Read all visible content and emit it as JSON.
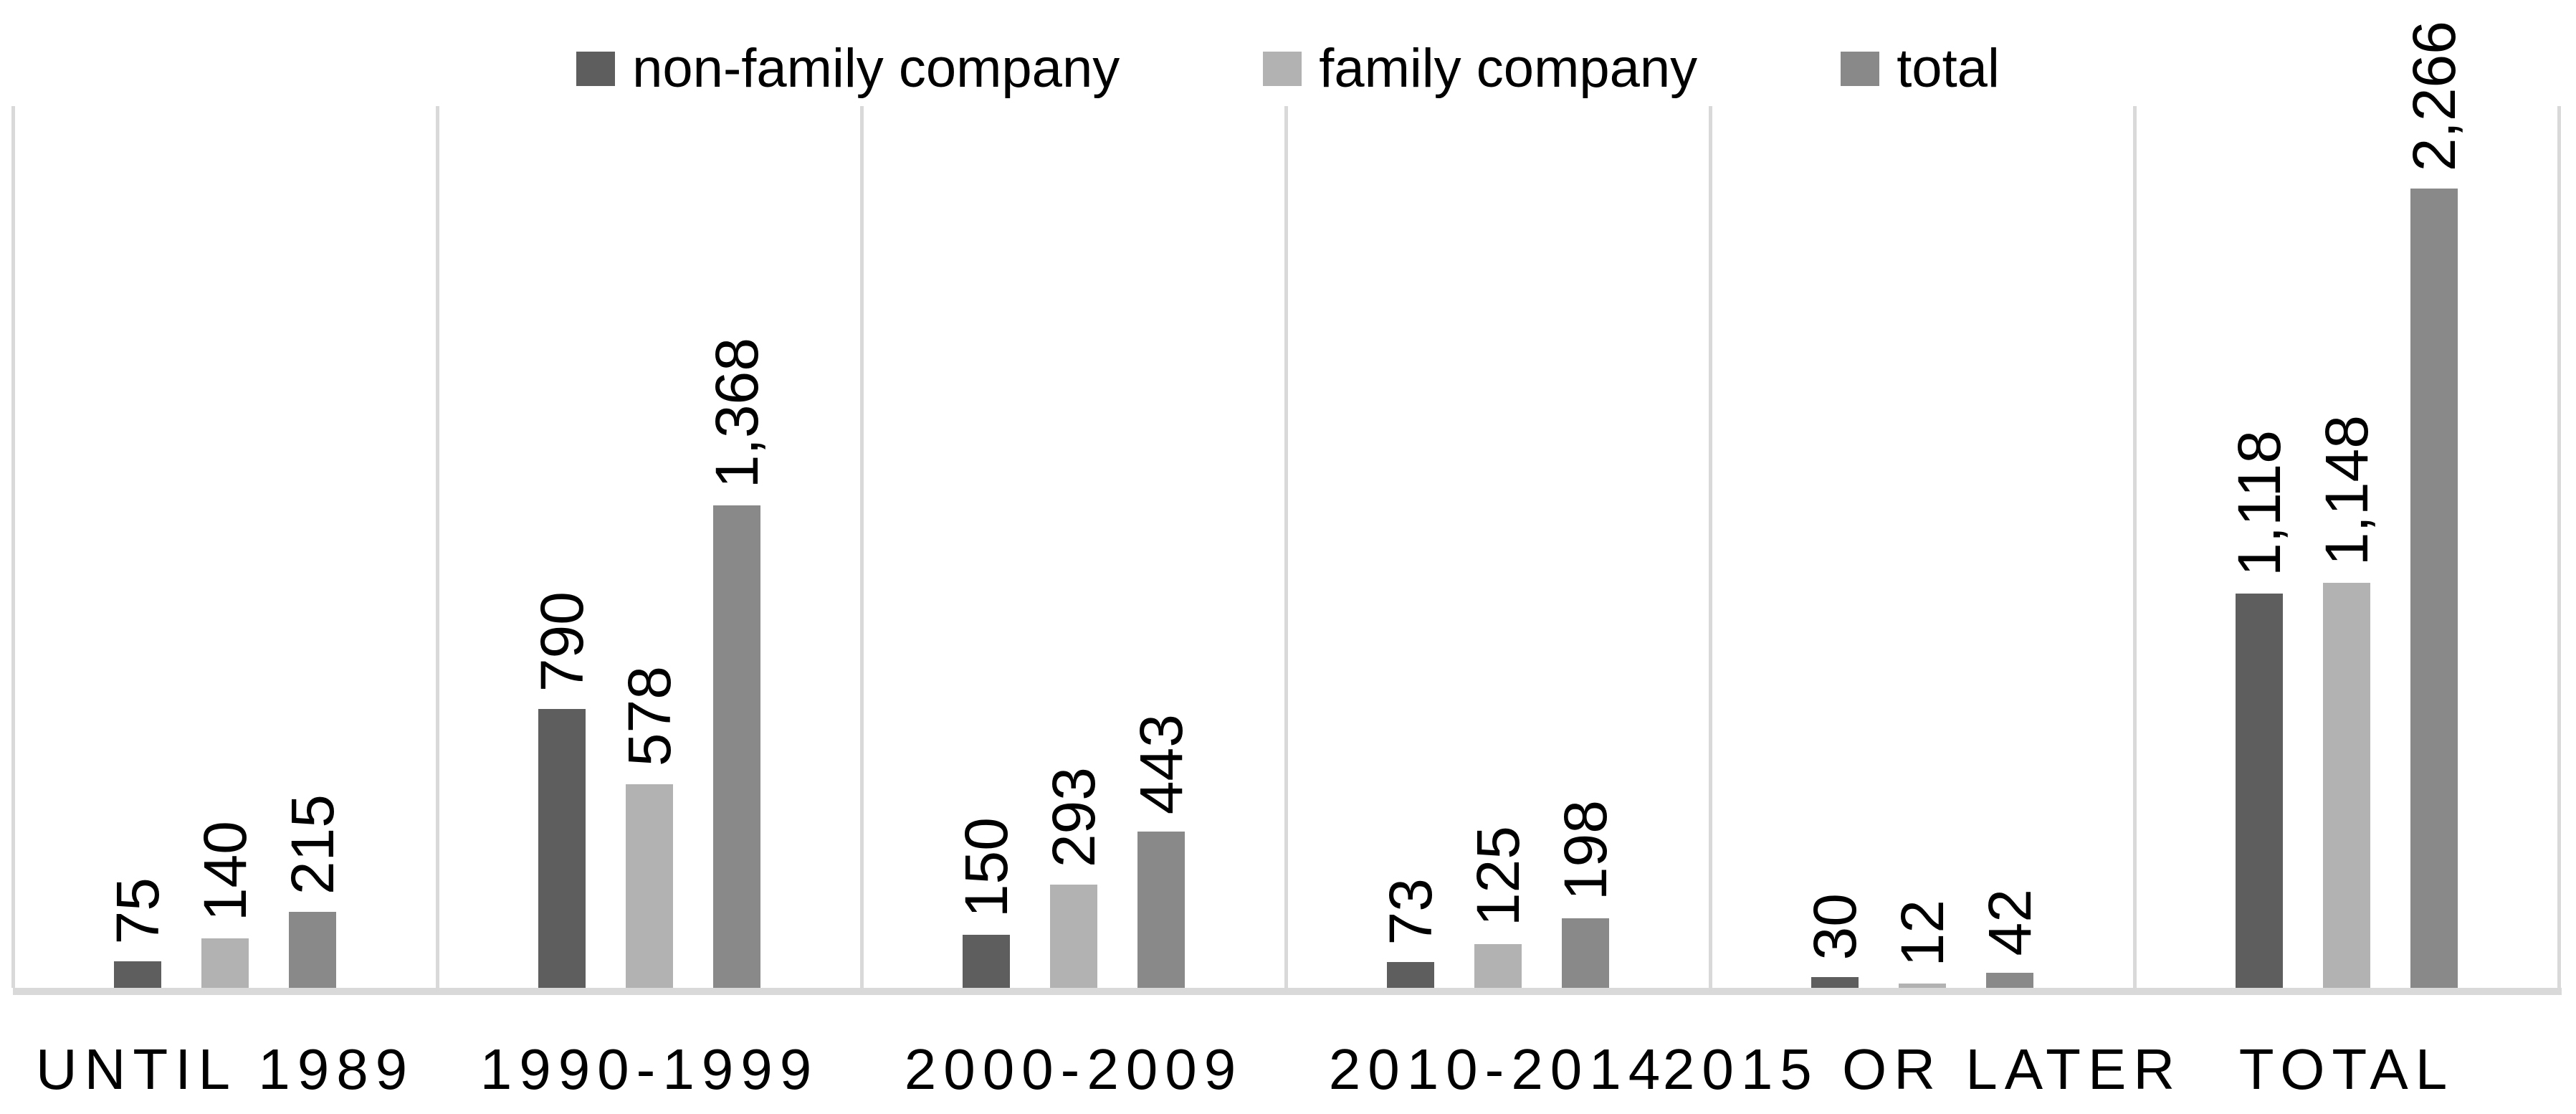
{
  "chart_data": {
    "type": "bar",
    "title": "",
    "xlabel": "",
    "ylabel": "",
    "categories": [
      "UNTIL 1989",
      "1990-1999",
      "2000-2009",
      "2010-2014",
      "2015 OR LATER",
      "TOTAL"
    ],
    "series": [
      {
        "name": "non-family company",
        "color": "#5e5e5e",
        "values": [
          75,
          790,
          150,
          73,
          30,
          1118
        ],
        "labels": [
          "75",
          "790",
          "150",
          "73",
          "30",
          "1,118"
        ]
      },
      {
        "name": "family company",
        "color": "#b2b2b2",
        "values": [
          140,
          578,
          293,
          125,
          12,
          1148
        ],
        "labels": [
          "140",
          "578",
          "293",
          "125",
          "12",
          "1,148"
        ]
      },
      {
        "name": "total",
        "color": "#898989",
        "values": [
          215,
          1368,
          443,
          198,
          42,
          2266
        ],
        "labels": [
          "215",
          "1,368",
          "443",
          "198",
          "42",
          "2,266"
        ]
      }
    ],
    "ylim": [
      0,
      2500
    ],
    "legend_position": "top",
    "gridlines": "vertical",
    "data_label_rotation": 90,
    "axis_color": "#d9d9d9",
    "text_color": "#000000",
    "background": "#ffffff"
  }
}
